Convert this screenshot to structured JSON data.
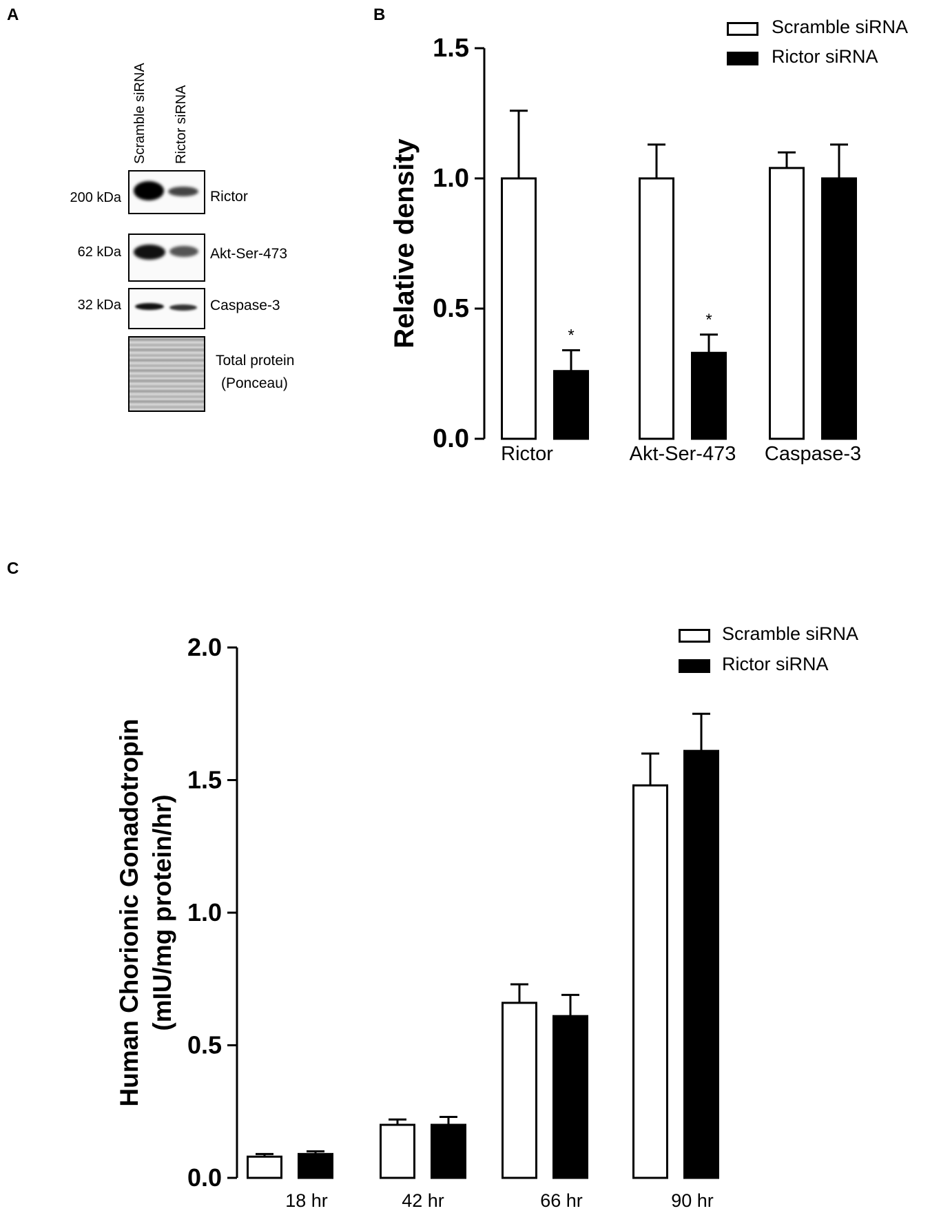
{
  "panels": {
    "a": {
      "letter": "A",
      "lanes": [
        "Scramble siRNA",
        "Rictor siRNA"
      ],
      "rows": [
        {
          "mw": "200 kDa",
          "name": "Rictor"
        },
        {
          "mw": "62 kDa",
          "name": "Akt-Ser-473"
        },
        {
          "mw": "32 kDa",
          "name": "Caspase-3"
        },
        {
          "mw": "",
          "name": "Total protein",
          "name2": "(Ponceau)"
        }
      ]
    },
    "b": {
      "letter": "B"
    },
    "c": {
      "letter": "C"
    }
  },
  "colors": {
    "scramble_fill": "#ffffff",
    "rictor_fill": "#000000",
    "axis": "#000000"
  },
  "chart_data": [
    {
      "type": "bar",
      "panel": "B",
      "title": "",
      "xlabel": "",
      "ylabel": "Relative density",
      "ylim": [
        0,
        1.5
      ],
      "yticks": [
        "0.0",
        "0.5",
        "1.0",
        "1.5"
      ],
      "ytick_values": [
        0,
        0.5,
        1.0,
        1.5
      ],
      "categories": [
        "Rictor",
        "Akt-Ser-473",
        "Caspase-3"
      ],
      "series": [
        {
          "name": "Scramble siRNA",
          "values": [
            1.0,
            1.0,
            1.04
          ],
          "errors": [
            0.26,
            0.13,
            0.06
          ]
        },
        {
          "name": "Rictor siRNA",
          "values": [
            0.26,
            0.33,
            1.0
          ],
          "errors": [
            0.08,
            0.07,
            0.13
          ]
        }
      ],
      "annotations": [
        {
          "text": "*",
          "series": 1,
          "category": 0
        },
        {
          "text": "*",
          "series": 1,
          "category": 1
        }
      ],
      "legend": "top-right"
    },
    {
      "type": "bar",
      "panel": "C",
      "title": "",
      "xlabel": "",
      "ylabel": "Human Chorionic Gonadotropin",
      "ylabel2": "(mIU/mg protein/hr)",
      "ylim": [
        0,
        2.0
      ],
      "yticks": [
        "0.0",
        "0.5",
        "1.0",
        "1.5",
        "2.0"
      ],
      "ytick_values": [
        0,
        0.5,
        1.0,
        1.5,
        2.0
      ],
      "categories": [
        "18 hr",
        "42 hr",
        "66 hr",
        "90 hr"
      ],
      "series": [
        {
          "name": "Scramble siRNA",
          "values": [
            0.08,
            0.2,
            0.66,
            1.48
          ],
          "errors": [
            0.01,
            0.02,
            0.07,
            0.12
          ]
        },
        {
          "name": "Rictor siRNA",
          "values": [
            0.09,
            0.2,
            0.61,
            1.61
          ],
          "errors": [
            0.01,
            0.03,
            0.08,
            0.14
          ]
        }
      ],
      "legend": "top-right"
    }
  ]
}
